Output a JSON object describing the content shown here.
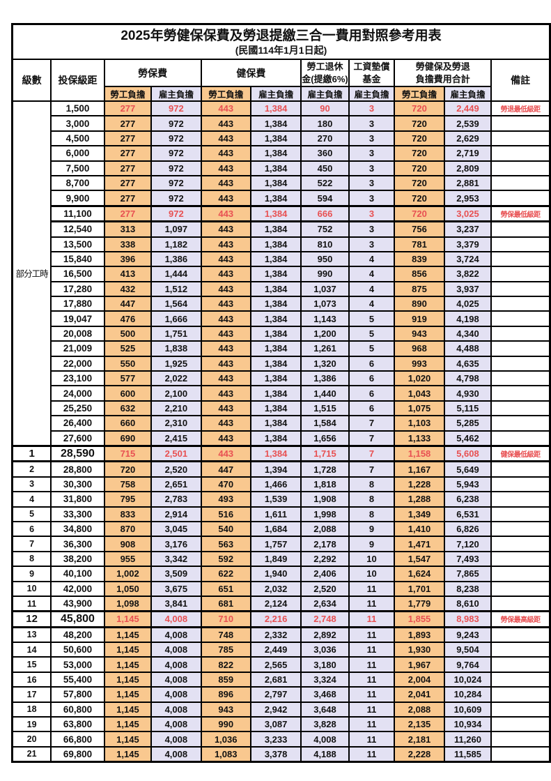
{
  "colors": {
    "employee_column_bg": "#F9C88F",
    "employer_column_bg": "#E3E1F3",
    "highlight_text": "#E85052",
    "border": "#000000"
  },
  "table": {
    "title": "2025年勞健保保費及勞退提繳三合一費用對照參考用表",
    "subtitle": "(民國114年1月1日起)",
    "headers": {
      "level": "級數",
      "bracket": "投保級距",
      "labor": "勞保費",
      "health": "健保費",
      "pension_l1": "勞工退休",
      "pension_l2": "金(提繳6%)",
      "wage_l1": "工資墊償",
      "wage_l2": "基金",
      "total_l1": "勞健保及勞退",
      "total_l2": "負擔費用合計",
      "note": "備註",
      "employee": "勞工負擔",
      "employer": "雇主負擔"
    },
    "part_time_label": "部分工時",
    "part_time_span": 23,
    "rows": [
      {
        "level": "",
        "bracket": "1,500",
        "cells": [
          "277",
          "972",
          "443",
          "1,384",
          "90",
          "3",
          "720",
          "2,449"
        ],
        "note": "勞退最低級距",
        "red": true,
        "big": false,
        "thick": false
      },
      {
        "level": "",
        "bracket": "3,000",
        "cells": [
          "277",
          "972",
          "443",
          "1,384",
          "180",
          "3",
          "720",
          "2,539"
        ],
        "note": "",
        "red": false,
        "big": false,
        "thick": false
      },
      {
        "level": "",
        "bracket": "4,500",
        "cells": [
          "277",
          "972",
          "443",
          "1,384",
          "270",
          "3",
          "720",
          "2,629"
        ],
        "note": "",
        "red": false,
        "big": false,
        "thick": false
      },
      {
        "level": "",
        "bracket": "6,000",
        "cells": [
          "277",
          "972",
          "443",
          "1,384",
          "360",
          "3",
          "720",
          "2,719"
        ],
        "note": "",
        "red": false,
        "big": false,
        "thick": false
      },
      {
        "level": "",
        "bracket": "7,500",
        "cells": [
          "277",
          "972",
          "443",
          "1,384",
          "450",
          "3",
          "720",
          "2,809"
        ],
        "note": "",
        "red": false,
        "big": false,
        "thick": false
      },
      {
        "level": "",
        "bracket": "8,700",
        "cells": [
          "277",
          "972",
          "443",
          "1,384",
          "522",
          "3",
          "720",
          "2,881"
        ],
        "note": "",
        "red": false,
        "big": false,
        "thick": false
      },
      {
        "level": "",
        "bracket": "9,900",
        "cells": [
          "277",
          "972",
          "443",
          "1,384",
          "594",
          "3",
          "720",
          "2,953"
        ],
        "note": "",
        "red": false,
        "big": false,
        "thick": false
      },
      {
        "level": "",
        "bracket": "11,100",
        "cells": [
          "277",
          "972",
          "443",
          "1,384",
          "666",
          "3",
          "720",
          "3,025"
        ],
        "note": "勞保最低級距",
        "red": true,
        "big": false,
        "thick": true
      },
      {
        "level": "",
        "bracket": "12,540",
        "cells": [
          "313",
          "1,097",
          "443",
          "1,384",
          "752",
          "3",
          "756",
          "3,237"
        ],
        "note": "",
        "red": false,
        "big": false,
        "thick": false
      },
      {
        "level": "",
        "bracket": "13,500",
        "cells": [
          "338",
          "1,182",
          "443",
          "1,384",
          "810",
          "3",
          "781",
          "3,379"
        ],
        "note": "",
        "red": false,
        "big": false,
        "thick": false
      },
      {
        "level": "",
        "bracket": "15,840",
        "cells": [
          "396",
          "1,386",
          "443",
          "1,384",
          "950",
          "4",
          "839",
          "3,724"
        ],
        "note": "",
        "red": false,
        "big": false,
        "thick": false
      },
      {
        "level": "",
        "bracket": "16,500",
        "cells": [
          "413",
          "1,444",
          "443",
          "1,384",
          "990",
          "4",
          "856",
          "3,822"
        ],
        "note": "",
        "red": false,
        "big": false,
        "thick": false
      },
      {
        "level": "",
        "bracket": "17,280",
        "cells": [
          "432",
          "1,512",
          "443",
          "1,384",
          "1,037",
          "4",
          "875",
          "3,937"
        ],
        "note": "",
        "red": false,
        "big": false,
        "thick": false
      },
      {
        "level": "",
        "bracket": "17,880",
        "cells": [
          "447",
          "1,564",
          "443",
          "1,384",
          "1,073",
          "4",
          "890",
          "4,025"
        ],
        "note": "",
        "red": false,
        "big": false,
        "thick": false
      },
      {
        "level": "",
        "bracket": "19,047",
        "cells": [
          "476",
          "1,666",
          "443",
          "1,384",
          "1,143",
          "5",
          "919",
          "4,198"
        ],
        "note": "",
        "red": false,
        "big": false,
        "thick": false
      },
      {
        "level": "",
        "bracket": "20,008",
        "cells": [
          "500",
          "1,751",
          "443",
          "1,384",
          "1,200",
          "5",
          "943",
          "4,340"
        ],
        "note": "",
        "red": false,
        "big": false,
        "thick": false
      },
      {
        "level": "",
        "bracket": "21,009",
        "cells": [
          "525",
          "1,838",
          "443",
          "1,384",
          "1,261",
          "5",
          "968",
          "4,488"
        ],
        "note": "",
        "red": false,
        "big": false,
        "thick": false
      },
      {
        "level": "",
        "bracket": "22,000",
        "cells": [
          "550",
          "1,925",
          "443",
          "1,384",
          "1,320",
          "6",
          "993",
          "4,635"
        ],
        "note": "",
        "red": false,
        "big": false,
        "thick": false
      },
      {
        "level": "",
        "bracket": "23,100",
        "cells": [
          "577",
          "2,022",
          "443",
          "1,384",
          "1,386",
          "6",
          "1,020",
          "4,798"
        ],
        "note": "",
        "red": false,
        "big": false,
        "thick": false
      },
      {
        "level": "",
        "bracket": "24,000",
        "cells": [
          "600",
          "2,100",
          "443",
          "1,384",
          "1,440",
          "6",
          "1,043",
          "4,930"
        ],
        "note": "",
        "red": false,
        "big": false,
        "thick": false
      },
      {
        "level": "",
        "bracket": "25,250",
        "cells": [
          "632",
          "2,210",
          "443",
          "1,384",
          "1,515",
          "6",
          "1,075",
          "5,115"
        ],
        "note": "",
        "red": false,
        "big": false,
        "thick": false
      },
      {
        "level": "",
        "bracket": "26,400",
        "cells": [
          "660",
          "2,310",
          "443",
          "1,384",
          "1,584",
          "7",
          "1,103",
          "5,285"
        ],
        "note": "",
        "red": false,
        "big": false,
        "thick": false
      },
      {
        "level": "",
        "bracket": "27,600",
        "cells": [
          "690",
          "2,415",
          "443",
          "1,384",
          "1,656",
          "7",
          "1,133",
          "5,462"
        ],
        "note": "",
        "red": false,
        "big": false,
        "thick": false
      },
      {
        "level": "1",
        "bracket": "28,590",
        "cells": [
          "715",
          "2,501",
          "443",
          "1,384",
          "1,715",
          "7",
          "1,158",
          "5,608"
        ],
        "note": "健保最低級距",
        "red": true,
        "big": true,
        "thick": true
      },
      {
        "level": "2",
        "bracket": "28,800",
        "cells": [
          "720",
          "2,520",
          "447",
          "1,394",
          "1,728",
          "7",
          "1,167",
          "5,649"
        ],
        "note": "",
        "red": false,
        "big": false,
        "thick": false
      },
      {
        "level": "3",
        "bracket": "30,300",
        "cells": [
          "758",
          "2,651",
          "470",
          "1,466",
          "1,818",
          "8",
          "1,228",
          "5,943"
        ],
        "note": "",
        "red": false,
        "big": false,
        "thick": false
      },
      {
        "level": "4",
        "bracket": "31,800",
        "cells": [
          "795",
          "2,783",
          "493",
          "1,539",
          "1,908",
          "8",
          "1,288",
          "6,238"
        ],
        "note": "",
        "red": false,
        "big": false,
        "thick": false
      },
      {
        "level": "5",
        "bracket": "33,300",
        "cells": [
          "833",
          "2,914",
          "516",
          "1,611",
          "1,998",
          "8",
          "1,349",
          "6,531"
        ],
        "note": "",
        "red": false,
        "big": false,
        "thick": false
      },
      {
        "level": "6",
        "bracket": "34,800",
        "cells": [
          "870",
          "3,045",
          "540",
          "1,684",
          "2,088",
          "9",
          "1,410",
          "6,826"
        ],
        "note": "",
        "red": false,
        "big": false,
        "thick": false
      },
      {
        "level": "7",
        "bracket": "36,300",
        "cells": [
          "908",
          "3,176",
          "563",
          "1,757",
          "2,178",
          "9",
          "1,471",
          "7,120"
        ],
        "note": "",
        "red": false,
        "big": false,
        "thick": false
      },
      {
        "level": "8",
        "bracket": "38,200",
        "cells": [
          "955",
          "3,342",
          "592",
          "1,849",
          "2,292",
          "10",
          "1,547",
          "7,493"
        ],
        "note": "",
        "red": false,
        "big": false,
        "thick": false
      },
      {
        "level": "9",
        "bracket": "40,100",
        "cells": [
          "1,002",
          "3,509",
          "622",
          "1,940",
          "2,406",
          "10",
          "1,624",
          "7,865"
        ],
        "note": "",
        "red": false,
        "big": false,
        "thick": false
      },
      {
        "level": "10",
        "bracket": "42,000",
        "cells": [
          "1,050",
          "3,675",
          "651",
          "2,032",
          "2,520",
          "11",
          "1,701",
          "8,238"
        ],
        "note": "",
        "red": false,
        "big": false,
        "thick": false
      },
      {
        "level": "11",
        "bracket": "43,900",
        "cells": [
          "1,098",
          "3,841",
          "681",
          "2,124",
          "2,634",
          "11",
          "1,779",
          "8,610"
        ],
        "note": "",
        "red": false,
        "big": false,
        "thick": false
      },
      {
        "level": "12",
        "bracket": "45,800",
        "cells": [
          "1,145",
          "4,008",
          "710",
          "2,216",
          "2,748",
          "11",
          "1,855",
          "8,983"
        ],
        "note": "勞保最高級距",
        "red": true,
        "big": true,
        "thick": true
      },
      {
        "level": "13",
        "bracket": "48,200",
        "cells": [
          "1,145",
          "4,008",
          "748",
          "2,332",
          "2,892",
          "11",
          "1,893",
          "9,243"
        ],
        "note": "",
        "red": false,
        "big": false,
        "thick": false
      },
      {
        "level": "14",
        "bracket": "50,600",
        "cells": [
          "1,145",
          "4,008",
          "785",
          "2,449",
          "3,036",
          "11",
          "1,930",
          "9,504"
        ],
        "note": "",
        "red": false,
        "big": false,
        "thick": false
      },
      {
        "level": "15",
        "bracket": "53,000",
        "cells": [
          "1,145",
          "4,008",
          "822",
          "2,565",
          "3,180",
          "11",
          "1,967",
          "9,764"
        ],
        "note": "",
        "red": false,
        "big": false,
        "thick": false
      },
      {
        "level": "16",
        "bracket": "55,400",
        "cells": [
          "1,145",
          "4,008",
          "859",
          "2,681",
          "3,324",
          "11",
          "2,004",
          "10,024"
        ],
        "note": "",
        "red": false,
        "big": false,
        "thick": false
      },
      {
        "level": "17",
        "bracket": "57,800",
        "cells": [
          "1,145",
          "4,008",
          "896",
          "2,797",
          "3,468",
          "11",
          "2,041",
          "10,284"
        ],
        "note": "",
        "red": false,
        "big": false,
        "thick": false
      },
      {
        "level": "18",
        "bracket": "60,800",
        "cells": [
          "1,145",
          "4,008",
          "943",
          "2,942",
          "3,648",
          "11",
          "2,088",
          "10,609"
        ],
        "note": "",
        "red": false,
        "big": false,
        "thick": false
      },
      {
        "level": "19",
        "bracket": "63,800",
        "cells": [
          "1,145",
          "4,008",
          "990",
          "3,087",
          "3,828",
          "11",
          "2,135",
          "10,934"
        ],
        "note": "",
        "red": false,
        "big": false,
        "thick": false
      },
      {
        "level": "20",
        "bracket": "66,800",
        "cells": [
          "1,145",
          "4,008",
          "1,036",
          "3,233",
          "4,008",
          "11",
          "2,181",
          "11,260"
        ],
        "note": "",
        "red": false,
        "big": false,
        "thick": false
      },
      {
        "level": "21",
        "bracket": "69,800",
        "cells": [
          "1,145",
          "4,008",
          "1,083",
          "3,378",
          "4,188",
          "11",
          "2,228",
          "11,585"
        ],
        "note": "",
        "red": false,
        "big": false,
        "thick": false
      }
    ]
  }
}
